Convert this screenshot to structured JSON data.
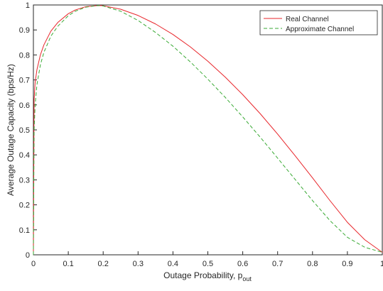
{
  "chart_data": {
    "type": "line",
    "xlabel_main": "Outage Probability, p",
    "xlabel_sub": "out",
    "ylabel": "Average Outage Capacity (bps/Hz)",
    "xlim": [
      0,
      1
    ],
    "ylim": [
      0,
      1
    ],
    "xticks": [
      0,
      0.1,
      0.2,
      0.3,
      0.4,
      0.5,
      0.6,
      0.7,
      0.8,
      0.9,
      1
    ],
    "xtick_labels": [
      "0",
      "0.1",
      "0.2",
      "0.3",
      "0.4",
      "0.5",
      "0.6",
      "0.7",
      "0.8",
      "0.9",
      "1"
    ],
    "yticks": [
      0,
      0.1,
      0.2,
      0.3,
      0.4,
      0.5,
      0.6,
      0.7,
      0.8,
      0.9,
      1
    ],
    "ytick_labels": [
      "0",
      "0.1",
      "0.2",
      "0.3",
      "0.4",
      "0.5",
      "0.6",
      "0.7",
      "0.8",
      "0.9",
      "1"
    ],
    "grid": false,
    "legend_position": "top-right",
    "series": [
      {
        "name": "Real Channel",
        "color": "#e8262b",
        "style": "solid",
        "x": [
          0,
          0.002,
          0.005,
          0.01,
          0.02,
          0.03,
          0.05,
          0.07,
          0.1,
          0.12,
          0.15,
          0.18,
          0.19,
          0.2,
          0.25,
          0.3,
          0.35,
          0.4,
          0.45,
          0.5,
          0.55,
          0.6,
          0.65,
          0.7,
          0.75,
          0.8,
          0.85,
          0.9,
          0.95,
          1.0
        ],
        "y": [
          0,
          0.62,
          0.69,
          0.74,
          0.8,
          0.84,
          0.895,
          0.93,
          0.965,
          0.98,
          0.993,
          0.997,
          0.998,
          0.997,
          0.983,
          0.958,
          0.924,
          0.882,
          0.832,
          0.775,
          0.711,
          0.641,
          0.565,
          0.483,
          0.397,
          0.308,
          0.217,
          0.13,
          0.06,
          0.01
        ]
      },
      {
        "name": "Approximate Channel",
        "color": "#3aaa35",
        "style": "dashed",
        "x": [
          0,
          0.002,
          0.005,
          0.01,
          0.02,
          0.03,
          0.05,
          0.07,
          0.1,
          0.12,
          0.15,
          0.18,
          0.19,
          0.2,
          0.25,
          0.3,
          0.35,
          0.4,
          0.45,
          0.5,
          0.55,
          0.6,
          0.65,
          0.7,
          0.75,
          0.8,
          0.85,
          0.9,
          0.95,
          1.0
        ],
        "y": [
          0,
          0.5,
          0.6,
          0.68,
          0.76,
          0.81,
          0.875,
          0.915,
          0.957,
          0.975,
          0.991,
          0.997,
          0.998,
          0.996,
          0.975,
          0.938,
          0.89,
          0.835,
          0.772,
          0.703,
          0.63,
          0.552,
          0.471,
          0.387,
          0.302,
          0.217,
          0.137,
          0.07,
          0.03,
          0.01
        ]
      }
    ]
  }
}
